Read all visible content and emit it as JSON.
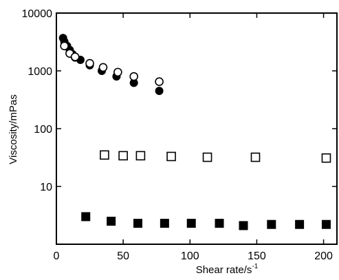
{
  "chart_data": {
    "type": "scatter",
    "xlabel": "Shear rate/s",
    "xlabel_superscript": "-1",
    "ylabel": "Viscosity/mPas",
    "xlim": [
      0,
      210
    ],
    "ylim": [
      1,
      10000
    ],
    "yscale": "log",
    "grid": false,
    "legend": "none",
    "x_ticks": [
      0,
      50,
      100,
      150,
      200
    ],
    "x_tick_labels": [
      "0",
      "50",
      "100",
      "150",
      "200"
    ],
    "y_ticks": [
      10,
      100,
      1000,
      10000
    ],
    "y_tick_labels": [
      "10",
      "100",
      "1000",
      "10000"
    ],
    "series": [
      {
        "marker": "filled-circle",
        "color": "#000000",
        "points": [
          {
            "x": 5,
            "y": 3700
          },
          {
            "x": 6,
            "y": 3200
          },
          {
            "x": 8,
            "y": 2700
          },
          {
            "x": 10,
            "y": 2300
          },
          {
            "x": 12,
            "y": 1950
          },
          {
            "x": 14,
            "y": 1700
          },
          {
            "x": 18,
            "y": 1550
          },
          {
            "x": 25,
            "y": 1250
          },
          {
            "x": 34,
            "y": 1000
          },
          {
            "x": 45,
            "y": 800
          },
          {
            "x": 58,
            "y": 620
          },
          {
            "x": 77,
            "y": 450
          }
        ]
      },
      {
        "marker": "open-circle",
        "color": "#000000",
        "points": [
          {
            "x": 6,
            "y": 2700
          },
          {
            "x": 10,
            "y": 2000
          },
          {
            "x": 14,
            "y": 1750
          },
          {
            "x": 25,
            "y": 1350
          },
          {
            "x": 35,
            "y": 1150
          },
          {
            "x": 46,
            "y": 950
          },
          {
            "x": 58,
            "y": 800
          },
          {
            "x": 77,
            "y": 650
          }
        ]
      },
      {
        "marker": "open-square",
        "color": "#000000",
        "points": [
          {
            "x": 36,
            "y": 35
          },
          {
            "x": 50,
            "y": 34
          },
          {
            "x": 63,
            "y": 34
          },
          {
            "x": 86,
            "y": 33
          },
          {
            "x": 113,
            "y": 32
          },
          {
            "x": 149,
            "y": 32
          },
          {
            "x": 202,
            "y": 31
          }
        ]
      },
      {
        "marker": "filled-square",
        "color": "#000000",
        "points": [
          {
            "x": 22,
            "y": 3.0
          },
          {
            "x": 41,
            "y": 2.5
          },
          {
            "x": 61,
            "y": 2.3
          },
          {
            "x": 81,
            "y": 2.3
          },
          {
            "x": 101,
            "y": 2.3
          },
          {
            "x": 122,
            "y": 2.3
          },
          {
            "x": 140,
            "y": 2.1
          },
          {
            "x": 161,
            "y": 2.2
          },
          {
            "x": 182,
            "y": 2.2
          },
          {
            "x": 202,
            "y": 2.2
          }
        ]
      }
    ]
  }
}
